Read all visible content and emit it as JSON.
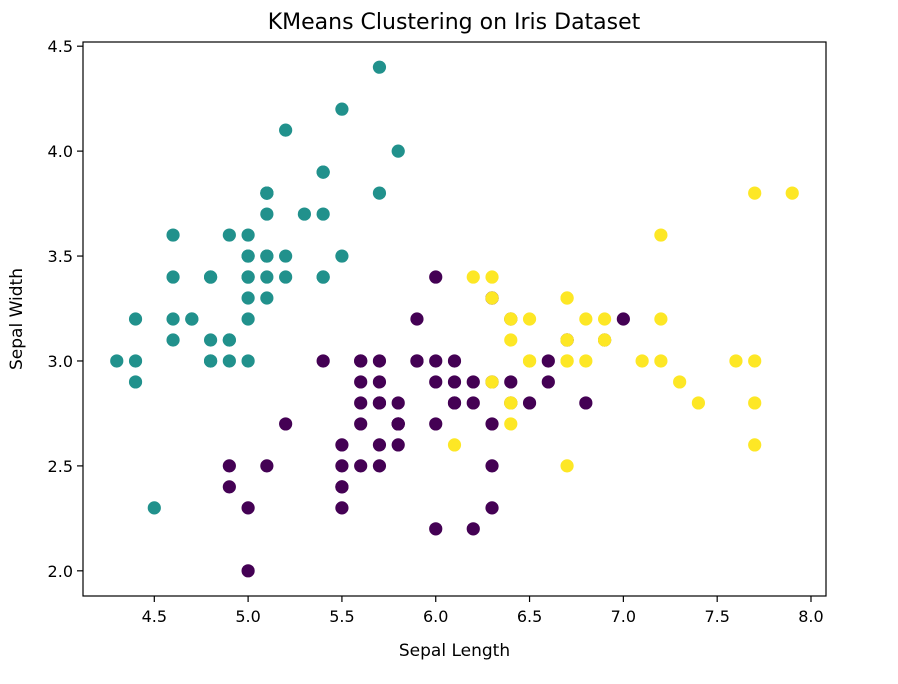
{
  "chart_data": {
    "type": "scatter",
    "title": "KMeans Clustering on Iris Dataset",
    "xlabel": "Sepal Length",
    "ylabel": "Sepal Width",
    "xlim": [
      4.12,
      8.08
    ],
    "ylim": [
      1.88,
      4.52
    ],
    "xticks": [
      "4.5",
      "5.0",
      "5.5",
      "6.0",
      "6.5",
      "7.0",
      "7.5",
      "8.0"
    ],
    "yticks": [
      "2.0",
      "2.5",
      "3.0",
      "3.5",
      "4.0",
      "4.5"
    ],
    "grid": false,
    "colormap": "viridis",
    "series": [
      {
        "color": "#21918c",
        "points": [
          [
            5.1,
            3.5
          ],
          [
            4.9,
            3.0
          ],
          [
            4.7,
            3.2
          ],
          [
            4.6,
            3.1
          ],
          [
            5.0,
            3.6
          ],
          [
            5.4,
            3.9
          ],
          [
            4.6,
            3.4
          ],
          [
            5.0,
            3.4
          ],
          [
            4.4,
            2.9
          ],
          [
            4.9,
            3.1
          ],
          [
            5.4,
            3.7
          ],
          [
            4.8,
            3.4
          ],
          [
            4.8,
            3.0
          ],
          [
            4.3,
            3.0
          ],
          [
            5.8,
            4.0
          ],
          [
            5.7,
            4.4
          ],
          [
            5.4,
            3.9
          ],
          [
            5.1,
            3.5
          ],
          [
            5.7,
            3.8
          ],
          [
            5.1,
            3.8
          ],
          [
            5.4,
            3.4
          ],
          [
            5.1,
            3.7
          ],
          [
            4.6,
            3.6
          ],
          [
            5.1,
            3.3
          ],
          [
            4.8,
            3.4
          ],
          [
            5.0,
            3.0
          ],
          [
            5.0,
            3.4
          ],
          [
            5.2,
            3.5
          ],
          [
            5.2,
            3.4
          ],
          [
            4.7,
            3.2
          ],
          [
            4.8,
            3.1
          ],
          [
            5.4,
            3.4
          ],
          [
            5.2,
            4.1
          ],
          [
            5.5,
            4.2
          ],
          [
            4.9,
            3.1
          ],
          [
            5.0,
            3.2
          ],
          [
            5.5,
            3.5
          ],
          [
            4.9,
            3.6
          ],
          [
            4.4,
            3.0
          ],
          [
            5.1,
            3.4
          ],
          [
            5.0,
            3.5
          ],
          [
            4.5,
            2.3
          ],
          [
            4.4,
            3.2
          ],
          [
            5.0,
            3.5
          ],
          [
            5.1,
            3.8
          ],
          [
            4.8,
            3.0
          ],
          [
            5.1,
            3.8
          ],
          [
            4.6,
            3.2
          ],
          [
            5.3,
            3.7
          ],
          [
            5.0,
            3.3
          ]
        ]
      },
      {
        "color": "#440154",
        "points": [
          [
            7.0,
            3.2
          ],
          [
            6.4,
            3.2
          ],
          [
            5.5,
            2.3
          ],
          [
            6.5,
            2.8
          ],
          [
            5.7,
            2.8
          ],
          [
            6.3,
            3.3
          ],
          [
            4.9,
            2.4
          ],
          [
            6.6,
            2.9
          ],
          [
            5.2,
            2.7
          ],
          [
            5.0,
            2.0
          ],
          [
            5.9,
            3.0
          ],
          [
            6.0,
            2.2
          ],
          [
            6.1,
            2.9
          ],
          [
            5.6,
            2.9
          ],
          [
            5.6,
            3.0
          ],
          [
            5.8,
            2.7
          ],
          [
            6.2,
            2.2
          ],
          [
            5.6,
            2.5
          ],
          [
            5.9,
            3.2
          ],
          [
            6.1,
            2.8
          ],
          [
            6.3,
            2.5
          ],
          [
            6.1,
            2.8
          ],
          [
            6.4,
            2.9
          ],
          [
            6.6,
            3.0
          ],
          [
            6.0,
            2.9
          ],
          [
            5.7,
            2.6
          ],
          [
            5.5,
            2.4
          ],
          [
            5.5,
            2.4
          ],
          [
            5.8,
            2.7
          ],
          [
            6.0,
            2.7
          ],
          [
            5.4,
            3.0
          ],
          [
            6.0,
            3.4
          ],
          [
            6.3,
            2.3
          ],
          [
            5.6,
            3.0
          ],
          [
            5.5,
            2.5
          ],
          [
            5.5,
            2.6
          ],
          [
            6.1,
            3.0
          ],
          [
            5.8,
            2.6
          ],
          [
            5.0,
            2.3
          ],
          [
            5.6,
            2.7
          ],
          [
            5.7,
            3.0
          ],
          [
            5.7,
            2.9
          ],
          [
            6.2,
            2.9
          ],
          [
            5.1,
            2.5
          ],
          [
            5.7,
            2.8
          ],
          [
            5.8,
            2.7
          ],
          [
            4.9,
            2.5
          ],
          [
            5.7,
            2.5
          ],
          [
            5.8,
            2.8
          ],
          [
            6.0,
            3.0
          ],
          [
            5.6,
            2.8
          ],
          [
            6.3,
            2.7
          ],
          [
            6.2,
            2.8
          ],
          [
            6.8,
            2.8
          ],
          [
            5.9,
            3.0
          ],
          [
            6.3,
            2.9
          ],
          [
            6.4,
            2.8
          ],
          [
            6.9,
            3.1
          ],
          [
            6.7,
            3.1
          ],
          [
            5.8,
            2.7
          ],
          [
            6.3,
            3.3
          ],
          [
            6.7,
            3.1
          ]
        ]
      },
      {
        "color": "#fde725",
        "points": [
          [
            6.9,
            3.1
          ],
          [
            6.7,
            3.0
          ],
          [
            6.3,
            2.9
          ],
          [
            7.6,
            3.0
          ],
          [
            7.3,
            2.9
          ],
          [
            6.7,
            2.5
          ],
          [
            7.2,
            3.6
          ],
          [
            6.5,
            3.2
          ],
          [
            6.8,
            3.0
          ],
          [
            6.4,
            3.2
          ],
          [
            6.5,
            3.0
          ],
          [
            7.7,
            3.8
          ],
          [
            7.7,
            2.6
          ],
          [
            6.9,
            3.2
          ],
          [
            7.7,
            2.8
          ],
          [
            6.7,
            3.3
          ],
          [
            7.2,
            3.2
          ],
          [
            6.2,
            3.4
          ],
          [
            6.4,
            2.8
          ],
          [
            7.2,
            3.0
          ],
          [
            7.4,
            2.8
          ],
          [
            7.9,
            3.8
          ],
          [
            6.4,
            2.8
          ],
          [
            6.1,
            2.6
          ],
          [
            7.7,
            3.0
          ],
          [
            6.3,
            3.4
          ],
          [
            6.4,
            3.1
          ],
          [
            6.9,
            3.1
          ],
          [
            6.7,
            3.1
          ],
          [
            6.7,
            3.3
          ],
          [
            6.7,
            3.0
          ],
          [
            6.5,
            3.0
          ],
          [
            6.8,
            3.2
          ],
          [
            6.4,
            2.7
          ],
          [
            7.1,
            3.0
          ],
          [
            6.3,
            3.3
          ],
          [
            6.7,
            3.1
          ],
          [
            6.4,
            3.2
          ]
        ]
      }
    ]
  }
}
